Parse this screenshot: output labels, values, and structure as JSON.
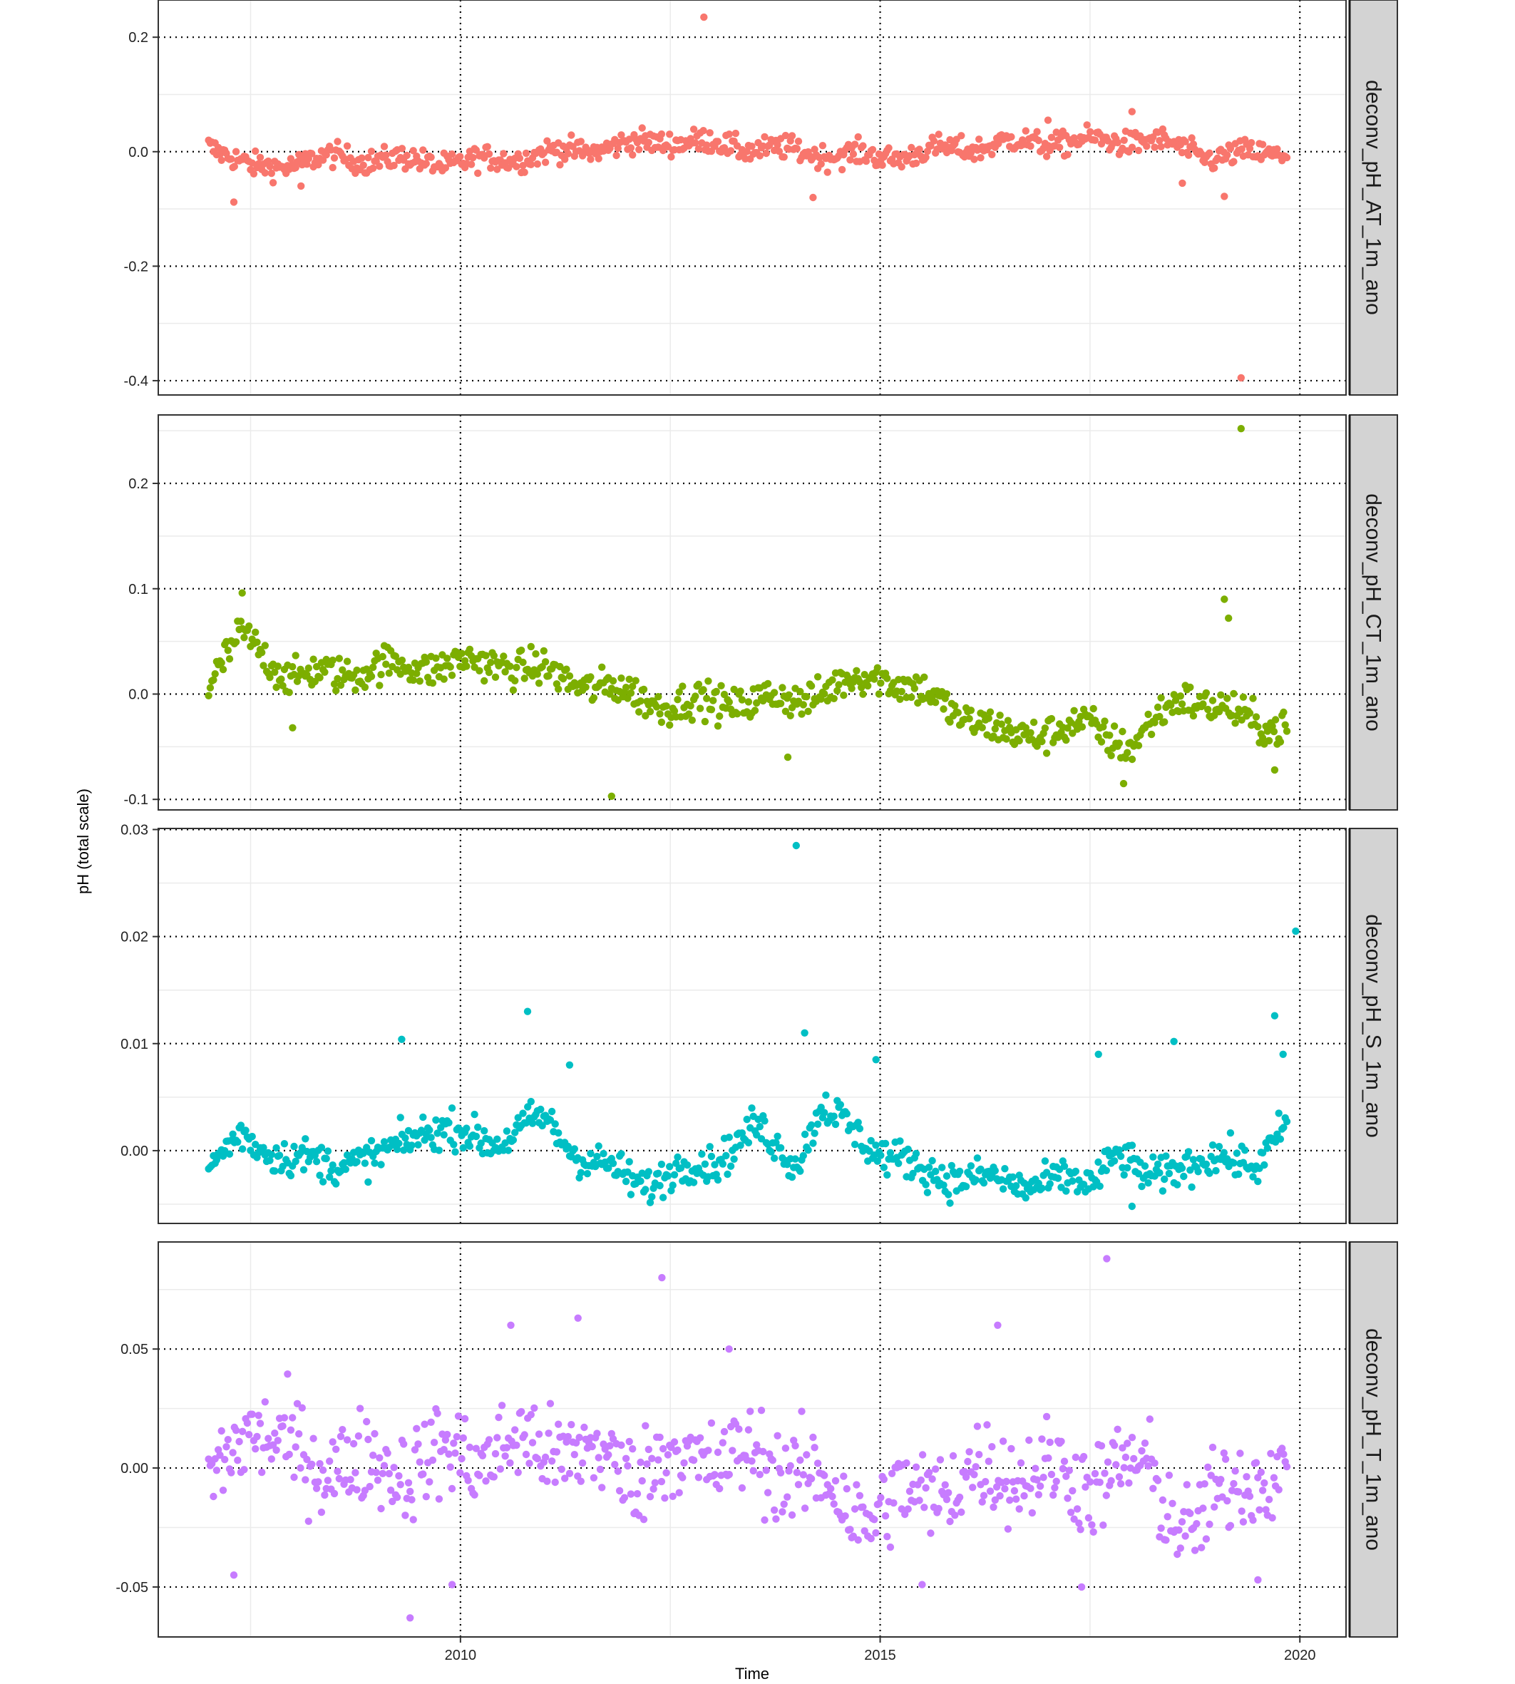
{
  "chart_data": {
    "type": "scatter",
    "xlabel": "Time",
    "ylabel": "pH (total scale)",
    "x_tick_labels": [
      "2010",
      "2015",
      "2020"
    ],
    "x_ticks": [
      2010,
      2015,
      2020
    ],
    "xlim": [
      2006.4,
      2020.55
    ],
    "grid": true,
    "legend": "none",
    "panels": [
      {
        "name": "deconv_pH_AT_1m_ano",
        "color": "#F8766D",
        "ylim": [
          -0.425,
          0.265
        ],
        "y_ticks": [
          0.2,
          0.0,
          -0.2,
          -0.4
        ],
        "y_tick_labels": [
          "0.2",
          "0.0",
          "-0.2",
          "-0.4"
        ],
        "base": 0.0,
        "spread": 0.015,
        "wave": 0.01,
        "segments": [
          [
            2007.0,
            0.015
          ],
          [
            2007.5,
            -0.03
          ],
          [
            2008.5,
            -0.01
          ],
          [
            2010.0,
            -0.02
          ],
          [
            2012.5,
            0.02
          ],
          [
            2014.0,
            0.0
          ],
          [
            2015.0,
            -0.01
          ],
          [
            2016.5,
            0.015
          ],
          [
            2018.2,
            0.02
          ],
          [
            2019.0,
            -0.01
          ],
          [
            2019.8,
            0.0
          ]
        ],
        "outliers": [
          [
            2012.9,
            0.235
          ],
          [
            2014.2,
            -0.08
          ],
          [
            2019.3,
            -0.395
          ],
          [
            2007.3,
            -0.088
          ],
          [
            2018.6,
            -0.055
          ],
          [
            2019.1,
            -0.078
          ],
          [
            2017.0,
            0.055
          ],
          [
            2018.0,
            0.07
          ],
          [
            2008.1,
            -0.06
          ]
        ]
      },
      {
        "name": "deconv_pH_CT_1m_ano",
        "color": "#7CAE00",
        "ylim": [
          -0.11,
          0.265
        ],
        "y_ticks": [
          0.2,
          0.1,
          0.0,
          -0.1
        ],
        "y_tick_labels": [
          "0.2",
          "0.1",
          "0.0",
          "-0.1"
        ],
        "base": 0.0,
        "spread": 0.012,
        "wave": 0.008,
        "segments": [
          [
            2007.0,
            0.01
          ],
          [
            2007.4,
            0.055
          ],
          [
            2008.0,
            0.015
          ],
          [
            2009.0,
            0.025
          ],
          [
            2010.5,
            0.03
          ],
          [
            2011.5,
            0.01
          ],
          [
            2012.5,
            -0.01
          ],
          [
            2014.0,
            -0.005
          ],
          [
            2015.0,
            0.02
          ],
          [
            2016.0,
            -0.02
          ],
          [
            2016.5,
            -0.04
          ],
          [
            2017.5,
            -0.03
          ],
          [
            2018.0,
            -0.05
          ],
          [
            2018.6,
            0.0
          ],
          [
            2019.2,
            -0.02
          ],
          [
            2019.7,
            -0.03
          ]
        ],
        "outliers": [
          [
            2019.3,
            0.252
          ],
          [
            2011.8,
            -0.097
          ],
          [
            2019.1,
            0.09
          ],
          [
            2019.15,
            0.072
          ],
          [
            2007.4,
            0.096
          ],
          [
            2008.0,
            -0.032
          ],
          [
            2013.9,
            -0.06
          ],
          [
            2017.9,
            -0.085
          ],
          [
            2019.7,
            -0.072
          ]
        ]
      },
      {
        "name": "deconv_pH_S_1m_ano",
        "color": "#00BFC4",
        "ylim": [
          -0.0068,
          0.0301
        ],
        "y_ticks": [
          0.03,
          0.02,
          0.01,
          0.0
        ],
        "y_tick_labels": [
          "0.03",
          "0.02",
          "0.01",
          "0.00"
        ],
        "base": 0.0,
        "spread": 0.0012,
        "wave": 0.0008,
        "segments": [
          [
            2007.0,
            -0.002
          ],
          [
            2007.4,
            0.0015
          ],
          [
            2008.0,
            -0.001
          ],
          [
            2009.0,
            -0.001
          ],
          [
            2009.5,
            0.002
          ],
          [
            2010.5,
            0.001
          ],
          [
            2011.0,
            0.003
          ],
          [
            2011.5,
            -0.001
          ],
          [
            2012.2,
            -0.003
          ],
          [
            2013.0,
            -0.001
          ],
          [
            2013.5,
            0.002
          ],
          [
            2014.0,
            -0.001
          ],
          [
            2014.3,
            0.004
          ],
          [
            2015.0,
            0.0
          ],
          [
            2015.5,
            -0.002
          ],
          [
            2016.5,
            -0.003
          ],
          [
            2017.5,
            -0.003
          ],
          [
            2017.8,
            0.0
          ],
          [
            2018.2,
            -0.003
          ],
          [
            2018.6,
            -0.001
          ],
          [
            2019.5,
            -0.001
          ],
          [
            2019.9,
            0.003
          ]
        ],
        "outliers": [
          [
            2014.0,
            0.0285
          ],
          [
            2019.95,
            0.0205
          ],
          [
            2010.8,
            0.013
          ],
          [
            2019.7,
            0.0126
          ],
          [
            2014.1,
            0.011
          ],
          [
            2009.3,
            0.0104
          ],
          [
            2018.5,
            0.0102
          ],
          [
            2017.6,
            0.009
          ],
          [
            2011.3,
            0.008
          ],
          [
            2014.95,
            0.0085
          ],
          [
            2019.8,
            0.009
          ],
          [
            2018.0,
            -0.0052
          ]
        ]
      },
      {
        "name": "deconv_pH_T_1m_ano",
        "color": "#C77CFF",
        "ylim": [
          -0.071,
          0.095
        ],
        "y_ticks": [
          0.05,
          0.0,
          -0.05
        ],
        "y_tick_labels": [
          "0.05",
          "0.00",
          "-0.05"
        ],
        "base": 0.0,
        "spread": 0.014,
        "wave": 0.008,
        "segments": [
          [
            2007.0,
            -0.01
          ],
          [
            2007.5,
            0.02
          ],
          [
            2008.0,
            0.005
          ],
          [
            2009.0,
            0.0
          ],
          [
            2010.0,
            0.005
          ],
          [
            2011.0,
            0.01
          ],
          [
            2012.0,
            0.0
          ],
          [
            2013.0,
            0.005
          ],
          [
            2014.0,
            0.0
          ],
          [
            2014.8,
            -0.02
          ],
          [
            2015.5,
            -0.01
          ],
          [
            2016.5,
            0.0
          ],
          [
            2017.5,
            -0.005
          ],
          [
            2018.2,
            0.0
          ],
          [
            2018.7,
            -0.03
          ],
          [
            2019.3,
            0.0
          ],
          [
            2019.9,
            -0.01
          ]
        ],
        "outliers": [
          [
            2017.7,
            0.088
          ],
          [
            2012.4,
            0.08
          ],
          [
            2011.4,
            0.063
          ],
          [
            2016.4,
            0.06
          ],
          [
            2010.6,
            0.06
          ],
          [
            2009.4,
            -0.063
          ],
          [
            2009.9,
            -0.049
          ],
          [
            2015.5,
            -0.049
          ],
          [
            2017.4,
            -0.05
          ],
          [
            2013.2,
            0.05
          ],
          [
            2007.3,
            -0.045
          ],
          [
            2019.5,
            -0.047
          ]
        ]
      }
    ]
  }
}
